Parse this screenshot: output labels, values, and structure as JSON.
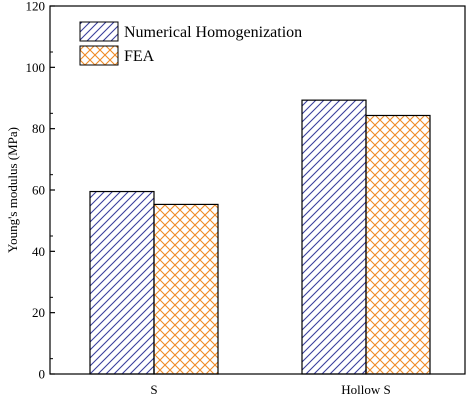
{
  "chart_data": {
    "type": "bar",
    "title": "",
    "xlabel": "",
    "ylabel": "Young's modulus (MPa)",
    "categories": [
      "S",
      "Hollow S"
    ],
    "ylim": [
      0,
      120
    ],
    "yticks": [
      "0",
      "20",
      "40",
      "60",
      "80",
      "100",
      "120"
    ],
    "grid": false,
    "legend_position": "top-left",
    "series": [
      {
        "name": "Numerical Homogenization",
        "values": [
          59.5,
          89.3
        ],
        "color": "#3a3f9c",
        "pattern": "diagonal-hatch"
      },
      {
        "name": "FEA",
        "values": [
          55.3,
          84.3
        ],
        "color": "#f08a24",
        "pattern": "cross-hatch"
      }
    ]
  }
}
